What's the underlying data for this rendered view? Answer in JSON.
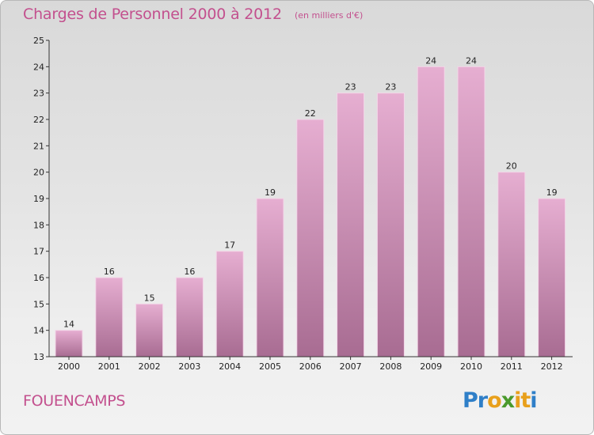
{
  "header": {
    "title": "Charges de Personnel 2000 à 2012",
    "subtitle": "(en milliers d'€)"
  },
  "footer": {
    "commune": "FOUENCAMPS"
  },
  "logo": {
    "text": "Proxiti",
    "letters": [
      {
        "ch": "P",
        "color": "#2f7fc8"
      },
      {
        "ch": "r",
        "color": "#2f7fc8"
      },
      {
        "ch": "o",
        "color": "#e8a01c"
      },
      {
        "ch": "x",
        "color": "#4a9a2c"
      },
      {
        "ch": "i",
        "color": "#e8a01c"
      },
      {
        "ch": "t",
        "color": "#e8a01c"
      },
      {
        "ch": "i",
        "color": "#2f7fc8"
      }
    ]
  },
  "colors": {
    "accent": "#c3508e",
    "bar_light": "#e6aed1",
    "bar_dark": "#a86c92"
  },
  "chart_data": {
    "type": "bar",
    "title": "Charges de Personnel 2000 à 2012",
    "subtitle": "(en milliers d'€)",
    "xlabel": "",
    "ylabel": "",
    "categories": [
      "2000",
      "2001",
      "2002",
      "2003",
      "2004",
      "2005",
      "2006",
      "2007",
      "2008",
      "2009",
      "2010",
      "2011",
      "2012"
    ],
    "values": [
      14,
      16,
      15,
      16,
      17,
      19,
      22,
      23,
      23,
      24,
      24,
      20,
      19
    ],
    "ylim": [
      13,
      25
    ],
    "yticks": [
      13,
      14,
      15,
      16,
      17,
      18,
      19,
      20,
      21,
      22,
      23,
      24,
      25
    ],
    "grid": false,
    "legend": "none"
  }
}
